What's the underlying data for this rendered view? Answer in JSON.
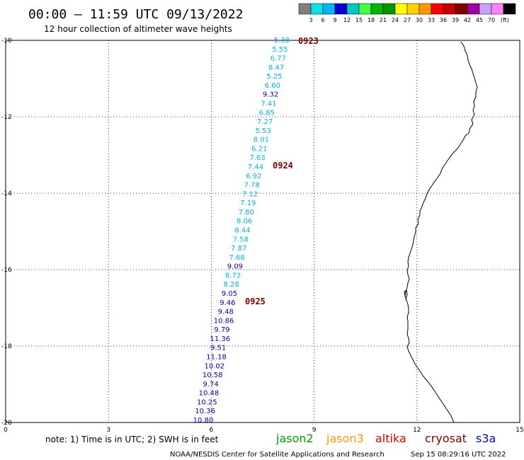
{
  "header": {
    "title": "00:00 – 11:59 UTC 09/13/2022",
    "subtitle": "12 hour collection of altimeter wave heights"
  },
  "colorbar": {
    "colors": [
      "#808080",
      "#00e6e6",
      "#00b4ff",
      "#0000d0",
      "#00c8c8",
      "#40ff40",
      "#00b400",
      "#009600",
      "#ffff00",
      "#ffd000",
      "#ff9600",
      "#ff0000",
      "#c80000",
      "#800000",
      "#a000a0",
      "#c8a0ff",
      "#ff80ff",
      "#000000"
    ],
    "labels": [
      "3",
      "6",
      "9",
      "12",
      "15",
      "18",
      "21",
      "24",
      "27",
      "30",
      "33",
      "36",
      "39",
      "42",
      "45",
      "70"
    ],
    "unit": "(ft)"
  },
  "axes": {
    "y_labels": [
      "-10",
      "-12",
      "-14",
      "-16",
      "-18",
      "-20"
    ],
    "x_labels": [
      "0",
      "3",
      "6",
      "9",
      "12",
      "15"
    ]
  },
  "track": {
    "color_light": "#00b4e0",
    "color_dark": "#0000c0",
    "values": [
      "5.38",
      "5.55",
      "6.77",
      "8.47",
      "5.25",
      "6.60",
      "9.32",
      "7.41",
      "6.85",
      "7.27",
      "5.53",
      "8.01",
      "6.21",
      "7.63",
      "7.44",
      "6.92",
      "7.78",
      "7.12",
      "7.19",
      "7.80",
      "8.06",
      "8.44",
      "7.58",
      "7.87",
      "7.68",
      "9.09",
      "8.72",
      "8.28",
      "9.05",
      "9.46",
      "9.48",
      "10.86",
      "9.79",
      "11.36",
      "9.51",
      "11.18",
      "10.02",
      "10.58",
      "9.74",
      "10.48",
      "10.25",
      "10.36",
      "10.80"
    ]
  },
  "time_labels": [
    "0923",
    "0924",
    "0925"
  ],
  "footer": {
    "note": "note: 1) Time is in UTC; 2) SWH is in feet",
    "satellites": [
      {
        "name": "jason2",
        "color": "#0000d0"
      },
      {
        "name": "jason3",
        "color": "#00a000"
      },
      {
        "name": "altika",
        "color": "#ff9600"
      },
      {
        "name": "cryosat",
        "color": "#e00000"
      },
      {
        "name": "s3a",
        "color": "#800000"
      }
    ],
    "credit": "NOAA/NESDIS Center for Satellite Applications and Research",
    "timestamp": "Sep 15 08:29:16 UTC 2022"
  }
}
